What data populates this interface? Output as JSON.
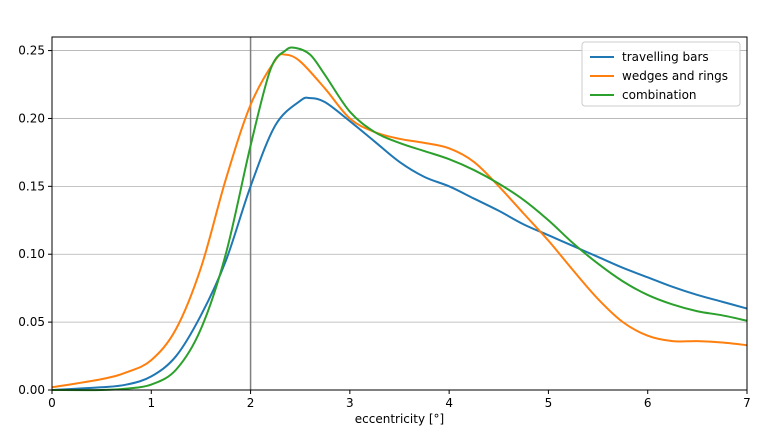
{
  "chart_data": {
    "type": "line",
    "title": "",
    "xlabel": "eccentricity [°]",
    "ylabel": "",
    "xlim": [
      0,
      7
    ],
    "ylim": [
      0,
      0.26
    ],
    "xticks": [
      "0",
      "1",
      "2",
      "3",
      "4",
      "5",
      "6",
      "7"
    ],
    "yticks": [
      "0.00",
      "0.05",
      "0.10",
      "0.15",
      "0.20",
      "0.25"
    ],
    "grid": "horizontal",
    "legend_position": "upper-right",
    "reference_line_x": 2,
    "series": [
      {
        "name": "travelling bars",
        "color": "#1f77b4",
        "x": [
          0,
          0.5,
          0.75,
          1.0,
          1.25,
          1.5,
          1.75,
          2.0,
          2.25,
          2.5,
          2.6,
          2.75,
          3.0,
          3.25,
          3.5,
          3.75,
          4.0,
          4.25,
          4.5,
          4.75,
          5.0,
          5.25,
          5.5,
          5.75,
          6.0,
          6.25,
          6.5,
          6.75,
          7.0
        ],
        "y": [
          0.0,
          0.002,
          0.004,
          0.01,
          0.025,
          0.055,
          0.095,
          0.15,
          0.195,
          0.213,
          0.215,
          0.212,
          0.198,
          0.183,
          0.168,
          0.157,
          0.15,
          0.141,
          0.132,
          0.122,
          0.114,
          0.106,
          0.098,
          0.09,
          0.083,
          0.076,
          0.07,
          0.065,
          0.06
        ]
      },
      {
        "name": "wedges and rings",
        "color": "#ff7f0e",
        "x": [
          0,
          0.5,
          0.75,
          1.0,
          1.25,
          1.5,
          1.75,
          2.0,
          2.25,
          2.35,
          2.5,
          2.75,
          3.0,
          3.25,
          3.5,
          3.75,
          4.0,
          4.25,
          4.5,
          4.75,
          5.0,
          5.25,
          5.5,
          5.75,
          6.0,
          6.25,
          6.5,
          6.75,
          7.0
        ],
        "y": [
          0.002,
          0.008,
          0.013,
          0.022,
          0.045,
          0.09,
          0.155,
          0.21,
          0.243,
          0.247,
          0.242,
          0.222,
          0.2,
          0.19,
          0.185,
          0.182,
          0.178,
          0.168,
          0.15,
          0.13,
          0.11,
          0.088,
          0.067,
          0.05,
          0.04,
          0.036,
          0.036,
          0.035,
          0.033
        ]
      },
      {
        "name": "combination",
        "color": "#2ca02c",
        "x": [
          0,
          0.5,
          0.75,
          1.0,
          1.25,
          1.5,
          1.75,
          2.0,
          2.2,
          2.35,
          2.45,
          2.6,
          2.75,
          3.0,
          3.25,
          3.5,
          3.75,
          4.0,
          4.25,
          4.5,
          4.75,
          5.0,
          5.25,
          5.5,
          5.75,
          6.0,
          6.25,
          6.5,
          6.75,
          7.0
        ],
        "y": [
          0.0,
          0.0,
          0.001,
          0.004,
          0.015,
          0.045,
          0.1,
          0.18,
          0.236,
          0.25,
          0.252,
          0.247,
          0.232,
          0.205,
          0.19,
          0.182,
          0.176,
          0.17,
          0.162,
          0.152,
          0.14,
          0.125,
          0.108,
          0.093,
          0.08,
          0.07,
          0.063,
          0.058,
          0.055,
          0.051
        ]
      }
    ]
  }
}
